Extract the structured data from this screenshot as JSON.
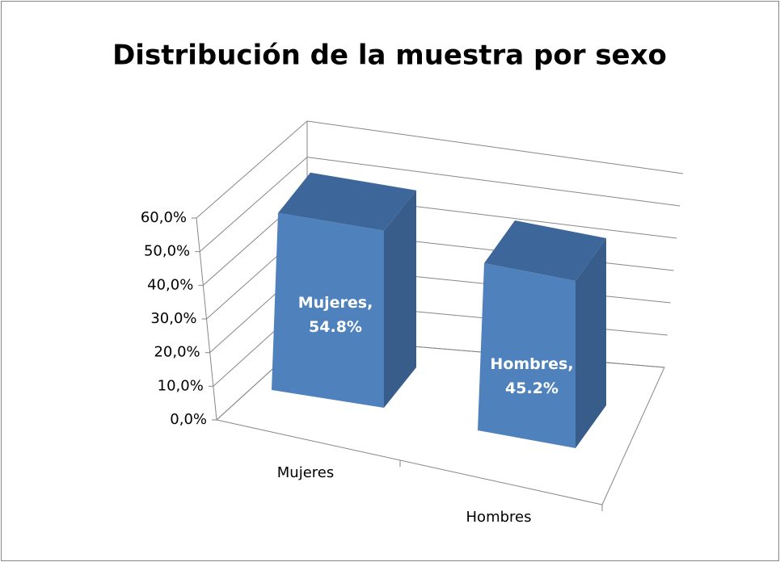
{
  "chart_data": {
    "type": "bar3d",
    "title": "Distribución de la muestra por sexo",
    "categories": [
      "Mujeres",
      "Hombres"
    ],
    "values": [
      54.8,
      45.2
    ],
    "value_labels": [
      "Mujeres, 54.8%",
      "Hombres, 45.2%"
    ],
    "color": "#4f81bd",
    "ylim": [
      0,
      60
    ],
    "yticks": [
      {
        "value": 0,
        "label": "0,0%"
      },
      {
        "value": 10,
        "label": "10,0%"
      },
      {
        "value": 20,
        "label": "20,0%"
      },
      {
        "value": 30,
        "label": "30,0%"
      },
      {
        "value": 40,
        "label": "40,0%"
      },
      {
        "value": 50,
        "label": "50,0%"
      },
      {
        "value": 60,
        "label": "60,0%"
      }
    ],
    "grid": true
  }
}
